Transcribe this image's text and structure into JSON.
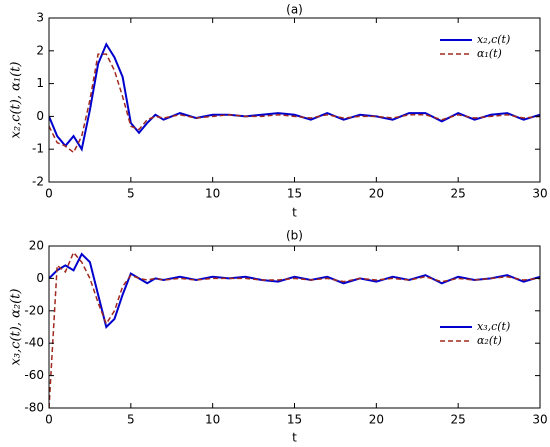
{
  "chart_data": [
    {
      "type": "line",
      "title": "(a)",
      "x_label": "t",
      "y_label": "x₂,c(t), α₁(t)",
      "x": [
        0,
        0.5,
        1,
        1.5,
        2,
        2.5,
        3,
        3.5,
        4,
        4.5,
        5,
        5.5,
        6,
        6.5,
        7,
        8,
        9,
        10,
        11,
        12,
        13,
        14,
        15,
        16,
        17,
        18,
        19,
        20,
        21,
        22,
        23,
        24,
        25,
        26,
        27,
        28,
        29,
        30
      ],
      "series": [
        {
          "name": "x₂,c(t)",
          "color": "#0000cd",
          "dash": "solid",
          "values": [
            0,
            -0.6,
            -0.9,
            -0.6,
            -1.0,
            0.2,
            1.6,
            2.2,
            1.8,
            1.2,
            -0.2,
            -0.5,
            -0.2,
            0.05,
            -0.1,
            0.1,
            -0.05,
            0.05,
            0.05,
            0.0,
            0.05,
            0.1,
            0.05,
            -0.1,
            0.1,
            -0.1,
            0.05,
            0.0,
            -0.1,
            0.1,
            0.1,
            -0.15,
            0.1,
            -0.1,
            0.05,
            0.1,
            -0.1,
            0.05
          ]
        },
        {
          "name": "α₁(t)",
          "color": "#a0281e",
          "dash": "dashed",
          "values": [
            -0.3,
            -0.8,
            -0.9,
            -1.1,
            -0.6,
            0.5,
            1.9,
            1.9,
            1.4,
            0.6,
            -0.3,
            -0.4,
            -0.1,
            0.0,
            -0.05,
            0.05,
            -0.05,
            0.0,
            0.05,
            0.0,
            0.0,
            0.05,
            0.0,
            -0.05,
            0.05,
            -0.05,
            0.0,
            0.0,
            -0.05,
            0.05,
            0.05,
            -0.1,
            0.05,
            -0.05,
            0.0,
            0.05,
            -0.05,
            0.0
          ]
        }
      ],
      "xlim": [
        0,
        30
      ],
      "xticks": [
        0,
        5,
        10,
        15,
        20,
        25,
        30
      ],
      "ylim": [
        -2,
        3
      ],
      "yticks": [
        -2,
        -1,
        0,
        1,
        2,
        3
      ],
      "legend": "upper right"
    },
    {
      "type": "line",
      "title": "(b)",
      "x_label": "t",
      "y_label": "x₃,c(t), α₂(t)",
      "x": [
        0,
        0.5,
        1,
        1.5,
        2,
        2.5,
        3,
        3.5,
        4,
        4.5,
        5,
        5.5,
        6,
        6.5,
        7,
        8,
        9,
        10,
        11,
        12,
        13,
        14,
        15,
        16,
        17,
        18,
        19,
        20,
        21,
        22,
        23,
        24,
        25,
        26,
        27,
        28,
        29,
        30
      ],
      "series": [
        {
          "name": "x₃,c(t)",
          "color": "#0000cd",
          "dash": "solid",
          "values": [
            0,
            5,
            8,
            5,
            15,
            10,
            -10,
            -30,
            -25,
            -10,
            3,
            0,
            -3,
            0,
            -1,
            1,
            -1,
            1,
            0,
            1,
            -1,
            -2,
            1,
            -1,
            1,
            -3,
            0,
            -2,
            1,
            -1,
            2,
            -3,
            1,
            -1,
            0,
            2,
            -2,
            1
          ]
        },
        {
          "name": "α₂(t)",
          "color": "#a0281e",
          "dash": "dashed",
          "values": [
            -80,
            8,
            4,
            16,
            10,
            0,
            -15,
            -28,
            -20,
            -5,
            2,
            0,
            -1,
            0,
            -1,
            0,
            -1,
            0,
            0,
            0,
            -1,
            -1,
            0,
            -1,
            0,
            -2,
            0,
            -1,
            0,
            -1,
            1,
            -2,
            0,
            -1,
            0,
            1,
            -1,
            0
          ]
        }
      ],
      "xlim": [
        0,
        30
      ],
      "xticks": [
        0,
        5,
        10,
        15,
        20,
        25,
        30
      ],
      "ylim": [
        -80,
        20
      ],
      "yticks": [
        -80,
        -60,
        -40,
        -20,
        0,
        20
      ],
      "legend": "center right"
    }
  ]
}
